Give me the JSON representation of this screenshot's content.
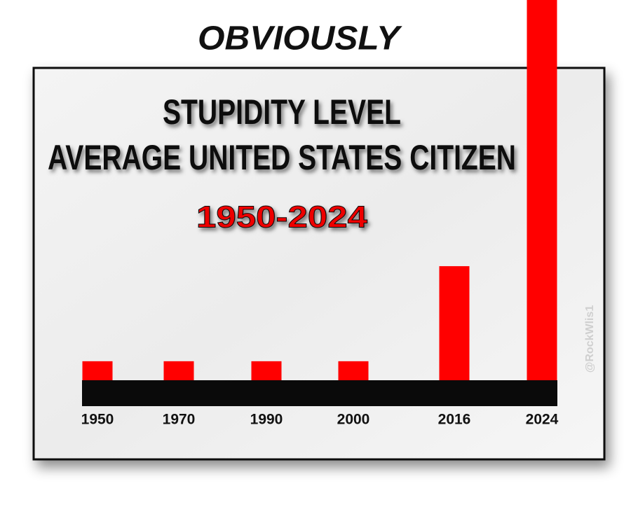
{
  "chart_data": {
    "type": "bar",
    "overline": "OBVIOUSLY",
    "title": [
      "STUPIDITY LEVEL",
      "AVERAGE UNITED STATES CITIZEN"
    ],
    "subtitle": "1950-2024",
    "watermark": "@RockWlis1",
    "categories": [
      "1950",
      "1970",
      "1990",
      "2000",
      "2016",
      "2024"
    ],
    "values": [
      1,
      1,
      1,
      1,
      6,
      20
    ],
    "color": "#ff0000"
  }
}
